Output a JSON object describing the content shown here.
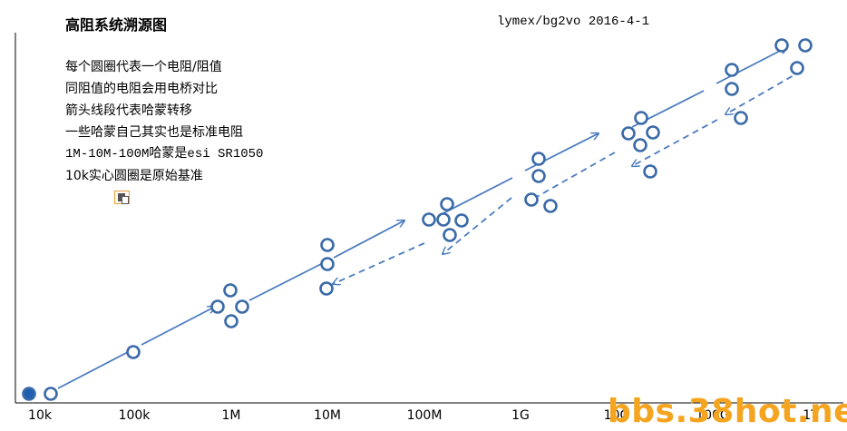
{
  "title": "高阻系统溯源图",
  "credit": "lymex/bg2vo 2016-4-1",
  "notes": [
    "每个圆圈代表一个电阻/阻值",
    "同阻值的电阻会用电桥对比",
    "箭头线段代表哈蒙转移",
    "一些哈蒙自己其实也是标准电阻",
    "1M-10M-100M哈蒙是esi SR1050",
    "10k实心圆圈是原始基准"
  ],
  "icons": {
    "paste": "paste-icon"
  },
  "watermark": "bbs.38hot.net",
  "colors": {
    "node_stroke": "#3a6aa8",
    "node_filled": "#1f5fb0",
    "arrow": "#4a7cc0",
    "watermark": "#f5a41f"
  },
  "chart_data": {
    "type": "diagram",
    "axis": {
      "scale": "log",
      "tick_labels": [
        "10k",
        "100k",
        "1M",
        "10M",
        "100M",
        "1G",
        "10G",
        "100G",
        "1T"
      ]
    },
    "solid_transfers": [
      [
        "10k",
        "100k"
      ],
      [
        "100k",
        "1M"
      ],
      [
        "1M",
        "10M"
      ],
      [
        "10M",
        "100M"
      ],
      [
        "100M",
        "1G"
      ],
      [
        "1G",
        "10G"
      ],
      [
        "10G",
        "100G"
      ],
      [
        "100G",
        "1T"
      ]
    ],
    "dashed_transfers": [
      [
        "1T",
        "100G"
      ],
      [
        "100G",
        "10G"
      ],
      [
        "10G",
        "1G"
      ],
      [
        "1G",
        "100M"
      ],
      [
        "100M",
        "10M"
      ]
    ],
    "primary_standard": "10k"
  }
}
